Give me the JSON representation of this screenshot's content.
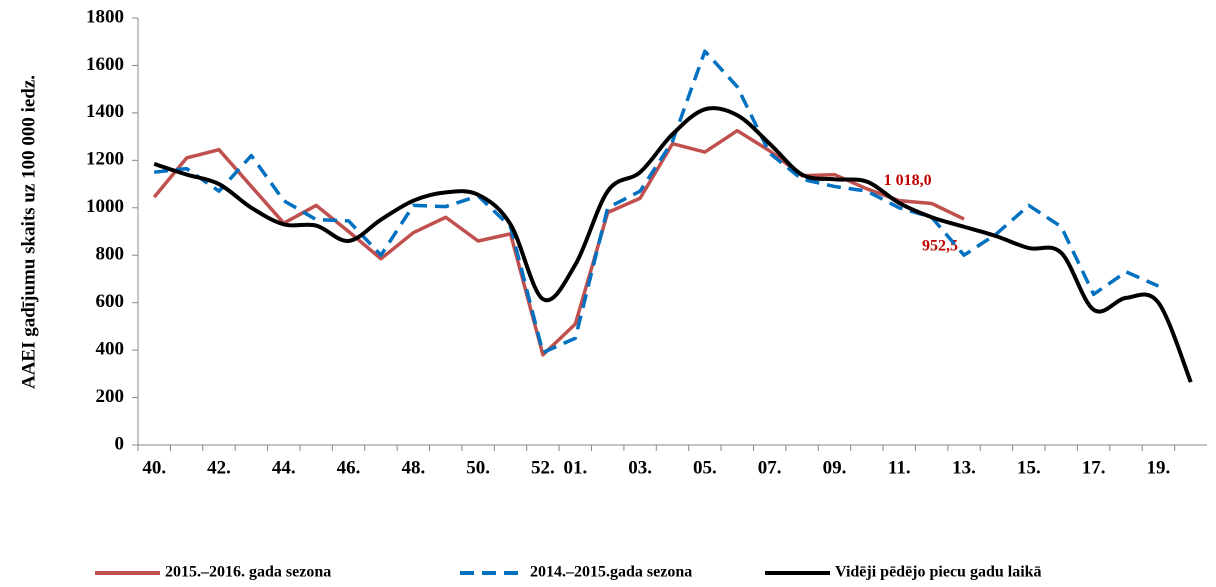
{
  "chart_data": {
    "type": "line",
    "ylabel": "AAEI gadījumu skaits uz 100 000 iedz.",
    "categories": [
      "40.",
      null,
      "42.",
      null,
      "44.",
      null,
      "46.",
      null,
      "48.",
      null,
      "50.",
      null,
      "52.",
      "01.",
      null,
      "03.",
      null,
      "05.",
      null,
      "07.",
      null,
      "09.",
      null,
      "11.",
      null,
      "13.",
      null,
      "15.",
      null,
      "17.",
      null,
      "19.",
      null
    ],
    "ylim": [
      0,
      1800
    ],
    "yticks": [
      0,
      200,
      400,
      600,
      800,
      1000,
      1200,
      1400,
      1600,
      1800
    ],
    "series": [
      {
        "name": "2015.–2016. gada sezona",
        "color": "#c0504d",
        "dash": false,
        "smooth": false,
        "values": [
          1045,
          1210,
          1245,
          1090,
          935,
          1010,
          900,
          785,
          895,
          960,
          860,
          890,
          380,
          510,
          980,
          1040,
          1270,
          1235,
          1325,
          1240,
          1135,
          1140,
          1080,
          1030,
          1018,
          952.5,
          null,
          null,
          null,
          null,
          null,
          null,
          null
        ],
        "value_labels": [
          null,
          null,
          null,
          null,
          null,
          null,
          null,
          null,
          null,
          null,
          null,
          null,
          null,
          null,
          null,
          null,
          null,
          null,
          null,
          null,
          null,
          null,
          null,
          null,
          "1 018,0",
          "952,5",
          null,
          null,
          null,
          null,
          null,
          null,
          null
        ]
      },
      {
        "name": "2014.–2015.gada sezona",
        "color": "#0070c0",
        "dash": true,
        "smooth": false,
        "values": [
          1150,
          1165,
          1070,
          1220,
          1030,
          950,
          945,
          800,
          1010,
          1005,
          1050,
          920,
          390,
          450,
          1000,
          1070,
          1280,
          1660,
          1510,
          1230,
          1120,
          1090,
          1070,
          1000,
          960,
          800,
          890,
          1010,
          920,
          635,
          730,
          670,
          null
        ]
      },
      {
        "name": "Vidēji pēdējo piecu gadu laikā",
        "color": "#000000",
        "dash": false,
        "smooth": true,
        "values": [
          1185,
          1140,
          1100,
          1000,
          930,
          925,
          860,
          950,
          1030,
          1065,
          1055,
          930,
          615,
          760,
          1070,
          1150,
          1310,
          1415,
          1390,
          1270,
          1140,
          1120,
          1110,
          1020,
          960,
          920,
          880,
          830,
          810,
          570,
          620,
          600,
          265
        ]
      }
    ]
  }
}
